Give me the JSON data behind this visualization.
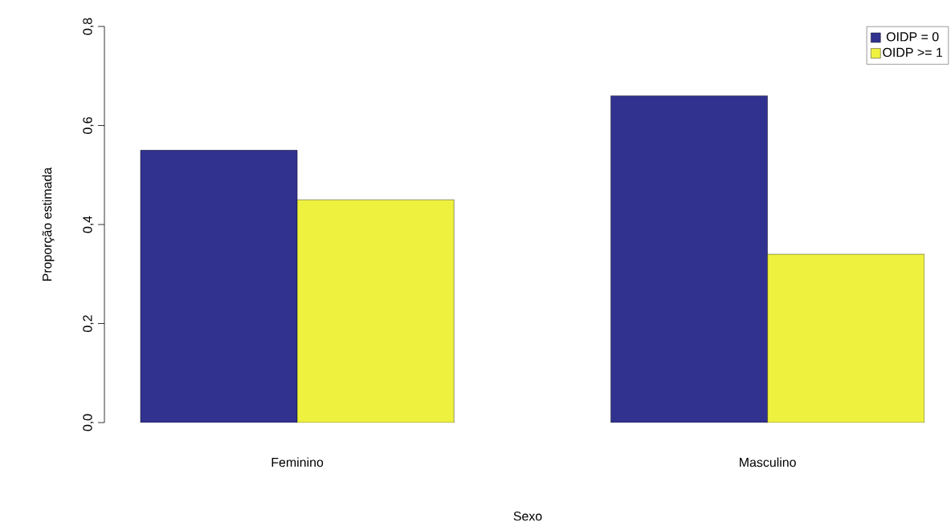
{
  "chart_data": {
    "type": "bar",
    "xlabel": "Sexo",
    "ylabel": "Proporção estimada",
    "categories": [
      "Feminino",
      "Masculino"
    ],
    "series": [
      {
        "name": "OIDP = 0",
        "color": "#31318f",
        "values": [
          0.55,
          0.66
        ]
      },
      {
        "name": "OIDP >= 1",
        "color": "#eef23e",
        "values": [
          0.45,
          0.34
        ]
      }
    ],
    "ylim": [
      0,
      0.8
    ],
    "yticks": [
      {
        "value": 0,
        "label": "0,0"
      },
      {
        "value": 0.2,
        "label": "0,2"
      },
      {
        "value": 0.4,
        "label": "0,4"
      },
      {
        "value": 0.6,
        "label": "0,6"
      },
      {
        "value": 0.8,
        "label": "0,8"
      }
    ],
    "legend": "top right",
    "grid": false
  }
}
